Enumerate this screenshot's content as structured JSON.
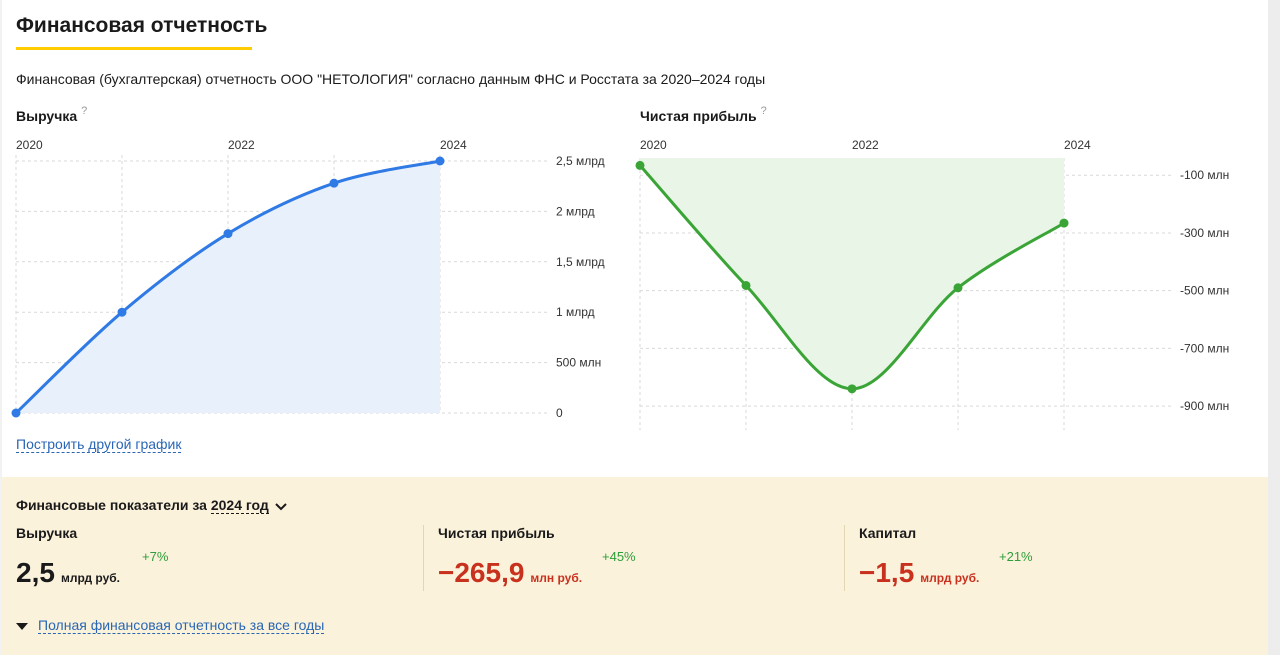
{
  "title": "Финансовая отчетность",
  "subtitle": "Финансовая (бухгалтерская) отчетность ООО \"НЕТОЛОГИЯ\" согласно данным ФНС и Росстата за 2020–2024 годы",
  "help_mark": "?",
  "build_other_chart_link": "Построить другой график",
  "colors": {
    "revenue_line": "#2f7ae5",
    "revenue_fill": "#e8f0fc",
    "profit_line": "#3aa536",
    "profit_fill": "#e8f5e7",
    "title_underline": "#ffcc00",
    "panel_bg": "#fbf2dc",
    "negative": "#c8311e",
    "positive_delta": "#2e9e3a",
    "link": "#2a66b4"
  },
  "chart_data": [
    {
      "type": "area",
      "title": "Выручка",
      "x": [
        2020,
        2021,
        2022,
        2023,
        2024
      ],
      "x_tick_labels": [
        "2020",
        "2022",
        "2024"
      ],
      "values": [
        0,
        1000000000,
        1780000000,
        2280000000,
        2500000000
      ],
      "ylim": [
        0,
        2500000000
      ],
      "y_ticks": [
        0,
        500000000,
        1000000000,
        1500000000,
        2000000000,
        2500000000
      ],
      "y_tick_labels": [
        "0",
        "500 млн",
        "1 млрд",
        "1,5 млрд",
        "2 млрд",
        "2,5 млрд"
      ],
      "grid": true
    },
    {
      "type": "area",
      "title": "Чистая прибыль",
      "x": [
        2020,
        2021,
        2022,
        2023,
        2024
      ],
      "x_tick_labels": [
        "2020",
        "2022",
        "2024"
      ],
      "values": [
        -66000000,
        -482000000,
        -840000000,
        -490000000,
        -265900000
      ],
      "ylim": [
        -1000000000,
        -30000000
      ],
      "y_ticks": [
        -100000000,
        -300000000,
        -500000000,
        -700000000,
        -900000000
      ],
      "y_tick_labels": [
        "-100 млн",
        "-300 млн",
        "-500 млн",
        "-700 млн",
        "-900 млн"
      ],
      "grid": true
    }
  ],
  "panel": {
    "heading_prefix": "Финансовые показатели за",
    "year": "2024 год",
    "metrics": [
      {
        "label": "Выручка",
        "value": "2,5",
        "unit": "млрд руб.",
        "delta": "+7%",
        "negative": false
      },
      {
        "label": "Чистая прибыль",
        "value": "−265,9",
        "unit": "млн руб.",
        "delta": "+45%",
        "negative": true
      },
      {
        "label": "Капитал",
        "value": "−1,5",
        "unit": "млрд руб.",
        "delta": "+21%",
        "negative": true
      }
    ],
    "full_report_link": "Полная финансовая отчетность за все годы"
  }
}
